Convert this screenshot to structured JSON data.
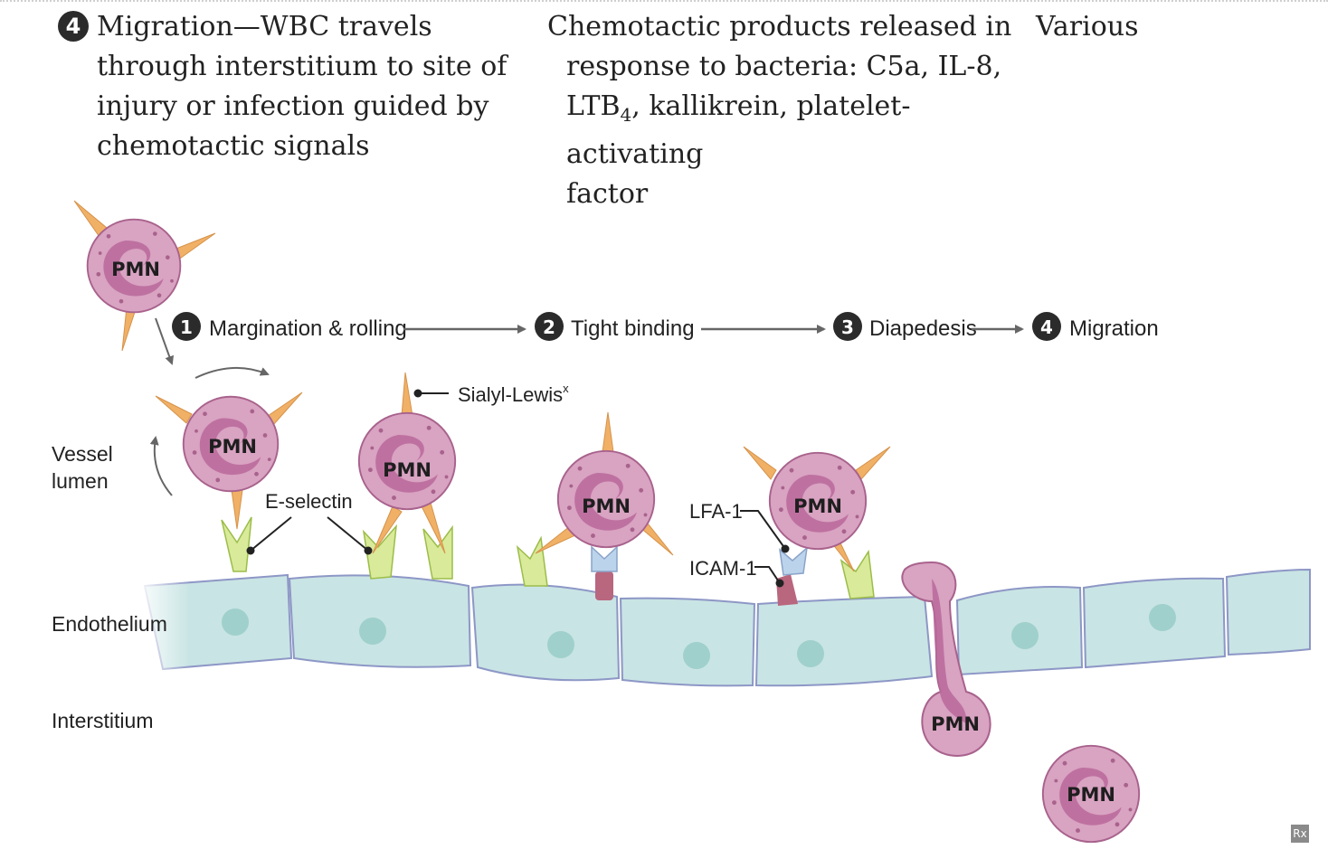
{
  "table_row": {
    "number": "4",
    "description_lines": [
      "Migration—WBC travels",
      "through interstitium to site of",
      "injury or infection guided by",
      "chemotactic signals"
    ],
    "molecules_line1": "Chemotactic products released in",
    "molecules_line2": "response to bacteria: C5a, IL-8,",
    "molecules_line3_a": "LTB",
    "molecules_line3_sub": "4",
    "molecules_line3_b": ", kallikrein, platelet-activating",
    "molecules_line4": "factor",
    "defect": "Various"
  },
  "steps": [
    {
      "number": "1",
      "label": "Margination & rolling"
    },
    {
      "number": "2",
      "label": "Tight binding"
    },
    {
      "number": "3",
      "label": "Diapedesis"
    },
    {
      "number": "4",
      "label": "Migration"
    }
  ],
  "region_labels": {
    "vessel_lumen_1": "Vessel",
    "vessel_lumen_2": "lumen",
    "endothelium": "Endothelium",
    "interstitium": "Interstitium"
  },
  "molecule_labels": {
    "sialyl": "Sialyl-Lewis",
    "sialyl_sup": "x",
    "e_selectin": "E-selectin",
    "lfa1": "LFA-1",
    "icam1": "ICAM-1"
  },
  "cell_label": "PMN",
  "colors": {
    "pmn_fill": "#d9a3c2",
    "pmn_outline": "#a8628c",
    "nucleus": "#b8689a",
    "spike": "#f0b167",
    "selectin": "#d9ea9a",
    "endothelium_fill": "#c9e4e4",
    "endothelium_outline": "#8d97c6",
    "endo_nucleus": "#9fd0cc",
    "icam": "#b9667f",
    "lfa": "#bcd3ec"
  },
  "watermark": "Rx"
}
